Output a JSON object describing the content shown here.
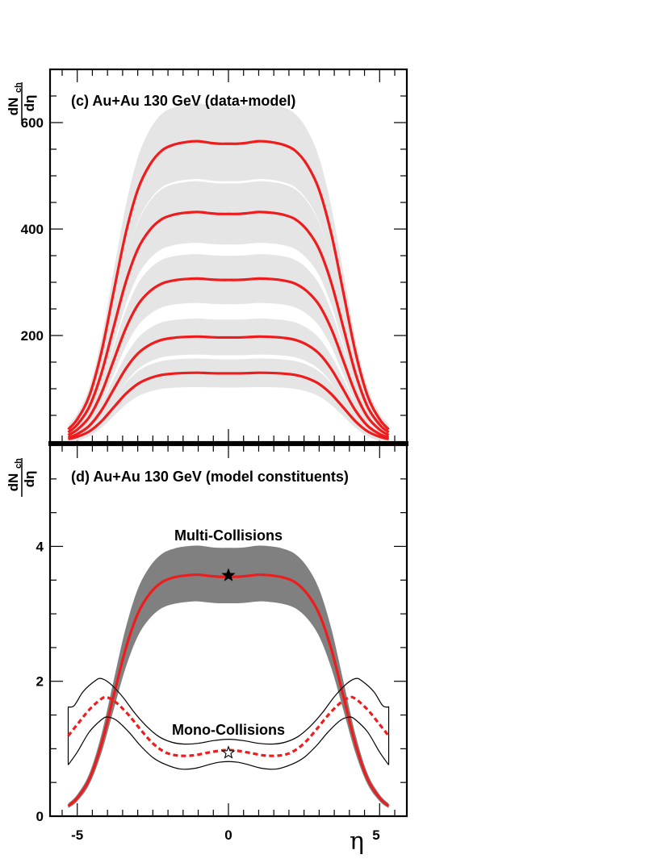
{
  "chart_data": [
    {
      "type": "line",
      "panel": "c",
      "title": "(c) Au+Au 130 GeV (data+model)",
      "ylabel_num": "dN",
      "ylabel_sub": "ch",
      "ylabel_den": "dη",
      "ylabel_ticks": [
        "200",
        "400",
        "600"
      ],
      "y_ticks": [
        200,
        400,
        600
      ],
      "xlim": [
        -5.9,
        5.9
      ],
      "ylim": [
        0,
        700
      ],
      "plateau_y": 3.58,
      "band_color": "#e5e5e5",
      "line_color": "#ee1c1c",
      "series": [
        {
          "scale": 565,
          "band": 0.115
        },
        {
          "scale": 432,
          "band": 0.12
        },
        {
          "scale": 307,
          "band": 0.13
        },
        {
          "scale": 198,
          "band": 0.14
        },
        {
          "scale": 130,
          "band": 0.16
        }
      ]
    },
    {
      "type": "line",
      "panel": "d",
      "title": "(d) Au+Au 130 GeV (model constituents)",
      "ylabel_num": "dN",
      "ylabel_sub": "ch",
      "ylabel_den": "dη",
      "ylabel_ticks": [
        "0",
        "2",
        "4"
      ],
      "y_ticks": [
        0,
        2,
        4
      ],
      "xlim": [
        -5.9,
        5.9
      ],
      "ylim": [
        0,
        5.5
      ],
      "x_ticks": [
        -5,
        0
      ],
      "x_tick_labels": [
        "-5",
        "0"
      ],
      "xlabel": "η",
      "xlabel_five": "5",
      "multi_label": "Multi-Collisions",
      "mono_label": "Mono-Collisions",
      "multi_band_color": "#808080",
      "multi_line_color": "#ee1c1c",
      "mono_line_color": "#ee1c1c",
      "multi_center": [
        [
          -5.3,
          0.15
        ],
        [
          -5.0,
          0.27
        ],
        [
          -4.6,
          0.55
        ],
        [
          -4.2,
          1.07
        ],
        [
          -3.8,
          1.78
        ],
        [
          -3.4,
          2.48
        ],
        [
          -3.0,
          3.0
        ],
        [
          -2.6,
          3.3
        ],
        [
          -2.2,
          3.47
        ],
        [
          -1.8,
          3.54
        ],
        [
          -1.4,
          3.57
        ],
        [
          -1.0,
          3.58
        ],
        [
          -0.6,
          3.56
        ],
        [
          -0.3,
          3.55
        ],
        [
          0.0,
          3.55
        ],
        [
          0.3,
          3.55
        ],
        [
          0.6,
          3.56
        ],
        [
          1.0,
          3.58
        ],
        [
          1.4,
          3.57
        ],
        [
          1.8,
          3.54
        ],
        [
          2.2,
          3.47
        ],
        [
          2.6,
          3.3
        ],
        [
          3.0,
          3.0
        ],
        [
          3.4,
          2.48
        ],
        [
          3.8,
          1.78
        ],
        [
          4.2,
          1.07
        ],
        [
          4.6,
          0.55
        ],
        [
          5.0,
          0.27
        ],
        [
          5.3,
          0.15
        ]
      ],
      "multi_star": [
        0.0,
        3.57
      ],
      "mono_center": [
        [
          -5.3,
          1.19
        ],
        [
          -5.0,
          1.36
        ],
        [
          -4.6,
          1.58
        ],
        [
          -4.2,
          1.74
        ],
        [
          -4.0,
          1.76
        ],
        [
          -3.7,
          1.68
        ],
        [
          -3.3,
          1.5
        ],
        [
          -2.9,
          1.28
        ],
        [
          -2.5,
          1.08
        ],
        [
          -2.1,
          0.95
        ],
        [
          -1.7,
          0.9
        ],
        [
          -1.2,
          0.9
        ],
        [
          -0.7,
          0.94
        ],
        [
          -0.3,
          0.97
        ],
        [
          0.0,
          0.98
        ],
        [
          0.3,
          0.97
        ],
        [
          0.7,
          0.94
        ],
        [
          1.2,
          0.9
        ],
        [
          1.7,
          0.9
        ],
        [
          2.1,
          0.95
        ],
        [
          2.5,
          1.08
        ],
        [
          2.9,
          1.28
        ],
        [
          3.3,
          1.5
        ],
        [
          3.7,
          1.68
        ],
        [
          4.0,
          1.76
        ],
        [
          4.2,
          1.74
        ],
        [
          4.6,
          1.58
        ],
        [
          5.0,
          1.36
        ],
        [
          5.3,
          1.19
        ]
      ],
      "mono_star": [
        0.0,
        0.94
      ],
      "mono_upper": [
        [
          -5.3,
          1.62
        ],
        [
          -5.1,
          1.64
        ],
        [
          -4.8,
          1.85
        ],
        [
          -4.4,
          2.01
        ],
        [
          -4.2,
          2.04
        ],
        [
          -3.9,
          1.96
        ],
        [
          -3.5,
          1.77
        ],
        [
          -3.1,
          1.53
        ],
        [
          -2.7,
          1.33
        ],
        [
          -2.3,
          1.18
        ],
        [
          -1.9,
          1.1
        ],
        [
          -1.5,
          1.07
        ],
        [
          -1.0,
          1.08
        ],
        [
          -0.5,
          1.12
        ],
        [
          0.0,
          1.14
        ],
        [
          0.5,
          1.12
        ],
        [
          1.0,
          1.08
        ],
        [
          1.5,
          1.07
        ],
        [
          1.9,
          1.1
        ],
        [
          2.3,
          1.18
        ],
        [
          2.7,
          1.33
        ],
        [
          3.1,
          1.53
        ],
        [
          3.5,
          1.77
        ],
        [
          3.9,
          1.96
        ],
        [
          4.2,
          2.04
        ],
        [
          4.4,
          2.01
        ],
        [
          4.8,
          1.85
        ],
        [
          5.1,
          1.64
        ],
        [
          5.3,
          1.62
        ]
      ],
      "mono_lower": [
        [
          -5.3,
          0.76
        ],
        [
          -5.0,
          0.95
        ],
        [
          -4.6,
          1.25
        ],
        [
          -4.2,
          1.43
        ],
        [
          -4.0,
          1.47
        ],
        [
          -3.7,
          1.42
        ],
        [
          -3.3,
          1.25
        ],
        [
          -2.9,
          1.04
        ],
        [
          -2.5,
          0.87
        ],
        [
          -2.1,
          0.77
        ],
        [
          -1.6,
          0.7
        ],
        [
          -1.1,
          0.71
        ],
        [
          -0.6,
          0.77
        ],
        [
          -0.3,
          0.8
        ],
        [
          0.0,
          0.81
        ],
        [
          0.3,
          0.8
        ],
        [
          0.6,
          0.77
        ],
        [
          1.1,
          0.71
        ],
        [
          1.6,
          0.7
        ],
        [
          2.1,
          0.77
        ],
        [
          2.5,
          0.87
        ],
        [
          2.9,
          1.04
        ],
        [
          3.3,
          1.25
        ],
        [
          3.7,
          1.42
        ],
        [
          4.0,
          1.47
        ],
        [
          4.2,
          1.43
        ],
        [
          4.6,
          1.25
        ],
        [
          5.0,
          0.95
        ],
        [
          5.3,
          0.76
        ]
      ]
    }
  ]
}
